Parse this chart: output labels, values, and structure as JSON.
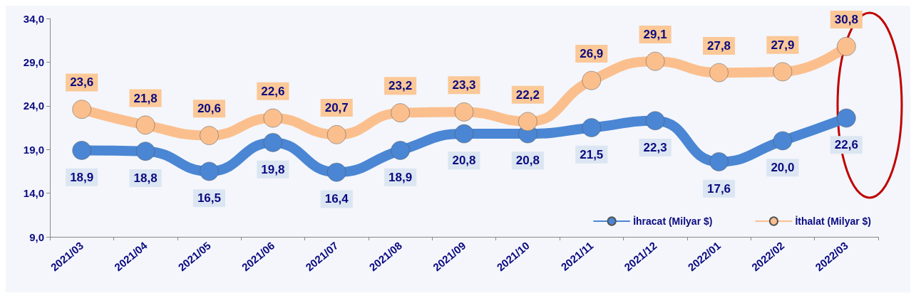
{
  "chart_data": {
    "type": "line",
    "categories": [
      "2021/03",
      "2021/04",
      "2021/05",
      "2021/06",
      "2021/07",
      "2021/08",
      "2021/09",
      "2021/10",
      "2021/11",
      "2021/12",
      "2022/01",
      "2022/02",
      "2022/03"
    ],
    "series": [
      {
        "name": "İhracat (Milyar $)",
        "color": "#4a86d4",
        "values": [
          18.9,
          18.8,
          16.5,
          19.8,
          16.4,
          18.9,
          20.8,
          20.8,
          21.5,
          22.3,
          17.6,
          20.0,
          22.6
        ],
        "value_labels": [
          "18,9",
          "18,8",
          "16,5",
          "19,8",
          "16,4",
          "18,9",
          "20,8",
          "20,8",
          "21,5",
          "22,3",
          "17,6",
          "20,0",
          "22,6"
        ]
      },
      {
        "name": "İthalat (Milyar $)",
        "color": "#fbbf8e",
        "values": [
          23.6,
          21.8,
          20.6,
          22.6,
          20.7,
          23.2,
          23.3,
          22.2,
          26.9,
          29.1,
          27.8,
          27.9,
          30.8
        ],
        "value_labels": [
          "23,6",
          "21,8",
          "20,6",
          "22,6",
          "20,7",
          "23,2",
          "23,3",
          "22,2",
          "26,9",
          "29,1",
          "27,8",
          "27,9",
          "30,8"
        ]
      }
    ],
    "ylim": [
      9,
      34
    ],
    "yticks": [
      {
        "value": 9,
        "label": "9,0"
      },
      {
        "value": 14,
        "label": "14,0"
      },
      {
        "value": 19,
        "label": "19,0"
      },
      {
        "value": 24,
        "label": "24,0"
      },
      {
        "value": 29,
        "label": "29,0"
      },
      {
        "value": 34,
        "label": "34,0"
      }
    ],
    "grid": false,
    "legend": "bottom right",
    "marker": "circle",
    "line_style": "solid"
  }
}
